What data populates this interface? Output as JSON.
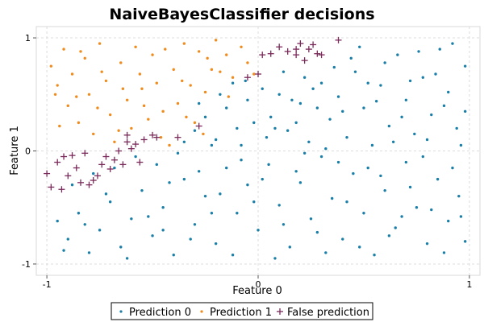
{
  "chart_data": {
    "type": "scatter",
    "title": "NaiveBayesClassifier decisions",
    "xlabel": "Feature 0",
    "ylabel": "Feature 1",
    "xlim": [
      -1.05,
      1.05
    ],
    "ylim": [
      -1.1,
      1.1
    ],
    "xticks": [
      -1,
      0,
      1
    ],
    "yticks": [
      -1,
      0,
      1
    ],
    "grid": true,
    "legend_position": "bottom",
    "colors": {
      "prediction_0": "#1a7fa8",
      "prediction_1": "#f08c1e",
      "false_prediction": "#7a2a5a"
    },
    "series": [
      {
        "name": "Prediction 0",
        "marker": "dot",
        "points": [
          [
            0.02,
            0.55
          ],
          [
            0.06,
            0.3
          ],
          [
            0.1,
            0.5
          ],
          [
            0.14,
            0.18
          ],
          [
            0.2,
            0.42
          ],
          [
            0.24,
            0.08
          ],
          [
            0.3,
            0.6
          ],
          [
            0.34,
            0.28
          ],
          [
            0.38,
            0.48
          ],
          [
            0.42,
            0.12
          ],
          [
            0.46,
            0.7
          ],
          [
            0.5,
            0.38
          ],
          [
            0.54,
            0.05
          ],
          [
            0.58,
            0.58
          ],
          [
            0.62,
            0.22
          ],
          [
            0.66,
            0.85
          ],
          [
            0.7,
            0.45
          ],
          [
            0.74,
            0.15
          ],
          [
            0.78,
            0.65
          ],
          [
            0.82,
            0.32
          ],
          [
            0.86,
            0.9
          ],
          [
            0.9,
            0.52
          ],
          [
            0.94,
            0.2
          ],
          [
            0.98,
            0.75
          ],
          [
            0.04,
            0.12
          ],
          [
            0.12,
            0.7
          ],
          [
            0.18,
            0.25
          ],
          [
            0.26,
            0.55
          ],
          [
            0.32,
            0.02
          ],
          [
            0.4,
            0.35
          ],
          [
            0.48,
            0.92
          ],
          [
            0.56,
            0.44
          ],
          [
            0.64,
            0.08
          ],
          [
            0.72,
            0.62
          ],
          [
            0.8,
            0.1
          ],
          [
            0.88,
            0.4
          ],
          [
            0.96,
            0.05
          ],
          [
            0.44,
            0.82
          ],
          [
            0.6,
            0.78
          ],
          [
            0.76,
            0.88
          ],
          [
            0.84,
            0.68
          ],
          [
            0.92,
            0.95
          ],
          [
            0.52,
            0.6
          ],
          [
            0.68,
            0.3
          ],
          [
            0.36,
            0.74
          ],
          [
            0.28,
            0.38
          ],
          [
            0.16,
            0.45
          ],
          [
            0.08,
            0.2
          ],
          [
            0.22,
            0.65
          ],
          [
            0.98,
            0.35
          ],
          [
            -0.05,
            0.45
          ],
          [
            -0.1,
            0.2
          ],
          [
            -0.15,
            0.38
          ],
          [
            -0.2,
            0.1
          ],
          [
            -0.25,
            0.3
          ],
          [
            -0.08,
            0.05
          ],
          [
            -0.3,
            0.18
          ],
          [
            -0.12,
            0.6
          ],
          [
            -0.18,
            0.5
          ],
          [
            -0.02,
            0.25
          ],
          [
            -0.22,
            0.05
          ],
          [
            -0.28,
            0.42
          ],
          [
            -0.35,
            0.08
          ],
          [
            -0.06,
            0.62
          ],
          [
            -0.95,
            -0.62
          ],
          [
            -0.9,
            -0.78
          ],
          [
            -0.85,
            -0.55
          ],
          [
            -0.8,
            -0.9
          ],
          [
            -0.75,
            -0.7
          ],
          [
            -0.7,
            -0.45
          ],
          [
            -0.65,
            -0.85
          ],
          [
            -0.6,
            -0.6
          ],
          [
            -0.55,
            -0.35
          ],
          [
            -0.5,
            -0.75
          ],
          [
            -0.45,
            -0.5
          ],
          [
            -0.4,
            -0.92
          ],
          [
            -0.35,
            -0.25
          ],
          [
            -0.3,
            -0.65
          ],
          [
            -0.25,
            -0.4
          ],
          [
            -0.2,
            -0.82
          ],
          [
            -0.15,
            -0.15
          ],
          [
            -0.1,
            -0.55
          ],
          [
            -0.05,
            -0.3
          ],
          [
            0.0,
            -0.7
          ],
          [
            0.05,
            -0.12
          ],
          [
            0.1,
            -0.48
          ],
          [
            0.15,
            -0.85
          ],
          [
            0.2,
            -0.28
          ],
          [
            0.25,
            -0.6
          ],
          [
            0.3,
            -0.05
          ],
          [
            0.35,
            -0.42
          ],
          [
            0.4,
            -0.78
          ],
          [
            0.45,
            -0.2
          ],
          [
            0.5,
            -0.55
          ],
          [
            0.55,
            -0.92
          ],
          [
            0.6,
            -0.35
          ],
          [
            0.65,
            -0.68
          ],
          [
            0.7,
            -0.1
          ],
          [
            0.75,
            -0.5
          ],
          [
            0.8,
            -0.82
          ],
          [
            0.85,
            -0.25
          ],
          [
            0.9,
            -0.62
          ],
          [
            0.95,
            -0.4
          ],
          [
            0.98,
            -0.8
          ],
          [
            -0.88,
            -0.3
          ],
          [
            -0.78,
            -0.2
          ],
          [
            -0.68,
            -0.15
          ],
          [
            -0.58,
            -0.05
          ],
          [
            -0.48,
            -0.12
          ],
          [
            -0.38,
            -0.02
          ],
          [
            -0.28,
            -0.18
          ],
          [
            -0.18,
            -0.38
          ],
          [
            -0.08,
            -0.08
          ],
          [
            0.02,
            -0.25
          ],
          [
            0.12,
            -0.65
          ],
          [
            0.22,
            -0.02
          ],
          [
            0.32,
            -0.9
          ],
          [
            0.42,
            -0.45
          ],
          [
            0.52,
            -0.15
          ],
          [
            0.62,
            -0.75
          ],
          [
            0.72,
            -0.32
          ],
          [
            0.82,
            -0.52
          ],
          [
            0.92,
            -0.15
          ],
          [
            -0.92,
            -0.88
          ],
          [
            -0.82,
            -0.65
          ],
          [
            -0.72,
            -0.38
          ],
          [
            -0.62,
            -0.95
          ],
          [
            -0.52,
            -0.58
          ],
          [
            -0.42,
            -0.28
          ],
          [
            -0.32,
            -0.78
          ],
          [
            -0.22,
            -0.55
          ],
          [
            -0.12,
            -0.92
          ],
          [
            -0.02,
            -0.45
          ],
          [
            0.08,
            -0.95
          ],
          [
            0.18,
            -0.18
          ],
          [
            0.28,
            -0.72
          ],
          [
            0.38,
            -0.1
          ],
          [
            0.48,
            -0.85
          ],
          [
            0.58,
            -0.22
          ],
          [
            0.68,
            -0.58
          ],
          [
            0.78,
            -0.05
          ],
          [
            0.88,
            -0.9
          ],
          [
            0.96,
            -0.58
          ],
          [
            -0.45,
            -0.7
          ]
        ]
      },
      {
        "name": "Prediction 1",
        "marker": "dot",
        "points": [
          [
            -0.98,
            0.75
          ],
          [
            -0.95,
            0.58
          ],
          [
            -0.92,
            0.9
          ],
          [
            -0.9,
            0.4
          ],
          [
            -0.88,
            0.68
          ],
          [
            -0.85,
            0.25
          ],
          [
            -0.82,
            0.82
          ],
          [
            -0.8,
            0.5
          ],
          [
            -0.78,
            0.15
          ],
          [
            -0.75,
            0.95
          ],
          [
            -0.72,
            0.62
          ],
          [
            -0.7,
            0.32
          ],
          [
            -0.68,
            0.08
          ],
          [
            -0.65,
            0.78
          ],
          [
            -0.62,
            0.45
          ],
          [
            -0.6,
            0.2
          ],
          [
            -0.58,
            0.92
          ],
          [
            -0.55,
            0.55
          ],
          [
            -0.52,
            0.28
          ],
          [
            -0.5,
            0.85
          ],
          [
            -0.48,
            0.6
          ],
          [
            -0.45,
            0.35
          ],
          [
            -0.42,
            0.05
          ],
          [
            -0.4,
            0.72
          ],
          [
            -0.38,
            0.42
          ],
          [
            -0.35,
            0.95
          ],
          [
            -0.32,
            0.58
          ],
          [
            -0.3,
            0.25
          ],
          [
            -0.28,
            0.88
          ],
          [
            -0.25,
            0.52
          ],
          [
            -0.22,
            0.72
          ],
          [
            -0.2,
            0.98
          ],
          [
            -0.18,
            0.7
          ],
          [
            -0.15,
            0.85
          ],
          [
            -0.12,
            0.65
          ],
          [
            -0.08,
            0.92
          ],
          [
            -0.05,
            0.78
          ],
          [
            -0.02,
            0.68
          ],
          [
            -0.94,
            0.22
          ],
          [
            -0.86,
            0.48
          ],
          [
            -0.76,
            0.38
          ],
          [
            -0.66,
            0.18
          ],
          [
            -0.56,
            0.68
          ],
          [
            -0.46,
            0.12
          ],
          [
            -0.36,
            0.62
          ],
          [
            -0.26,
            0.15
          ],
          [
            -0.96,
            0.5
          ],
          [
            -0.84,
            0.88
          ],
          [
            -0.74,
            0.7
          ],
          [
            -0.64,
            0.55
          ],
          [
            -0.54,
            0.4
          ],
          [
            -0.44,
            0.9
          ],
          [
            -0.34,
            0.3
          ],
          [
            -0.24,
            0.82
          ],
          [
            -0.14,
            0.48
          ]
        ]
      },
      {
        "name": "False prediction",
        "marker": "plus",
        "points": [
          [
            -1.0,
            -0.2
          ],
          [
            -0.98,
            -0.32
          ],
          [
            -0.95,
            -0.1
          ],
          [
            -0.93,
            -0.34
          ],
          [
            -0.92,
            -0.05
          ],
          [
            -0.9,
            -0.22
          ],
          [
            -0.88,
            -0.04
          ],
          [
            -0.86,
            -0.15
          ],
          [
            -0.84,
            -0.28
          ],
          [
            -0.82,
            -0.02
          ],
          [
            -0.8,
            -0.3
          ],
          [
            -0.78,
            -0.26
          ],
          [
            -0.76,
            -0.22
          ],
          [
            -0.74,
            -0.12
          ],
          [
            -0.72,
            -0.05
          ],
          [
            -0.7,
            -0.16
          ],
          [
            -0.68,
            -0.08
          ],
          [
            -0.66,
            0.0
          ],
          [
            -0.64,
            -0.12
          ],
          [
            -0.62,
            0.08
          ],
          [
            -0.6,
            0.02
          ],
          [
            -0.58,
            0.06
          ],
          [
            -0.56,
            -0.1
          ],
          [
            -0.54,
            0.1
          ],
          [
            -0.5,
            0.14
          ],
          [
            -0.48,
            0.12
          ],
          [
            -0.38,
            0.12
          ],
          [
            -0.28,
            0.22
          ],
          [
            -0.05,
            0.65
          ],
          [
            0.0,
            0.68
          ],
          [
            0.02,
            0.85
          ],
          [
            0.06,
            0.86
          ],
          [
            0.1,
            0.92
          ],
          [
            0.14,
            0.88
          ],
          [
            0.18,
            0.85
          ],
          [
            0.2,
            0.95
          ],
          [
            0.22,
            0.8
          ],
          [
            0.24,
            0.9
          ],
          [
            0.26,
            0.94
          ],
          [
            0.28,
            0.86
          ],
          [
            0.3,
            0.85
          ],
          [
            0.38,
            0.98
          ],
          [
            -0.62,
            0.14
          ],
          [
            0.18,
            0.9
          ]
        ]
      }
    ]
  },
  "legend": {
    "items": [
      {
        "label": "Prediction 0",
        "symbol": "·"
      },
      {
        "label": "Prediction 1",
        "symbol": "·"
      },
      {
        "label": "False prediction",
        "symbol": "+"
      }
    ]
  }
}
